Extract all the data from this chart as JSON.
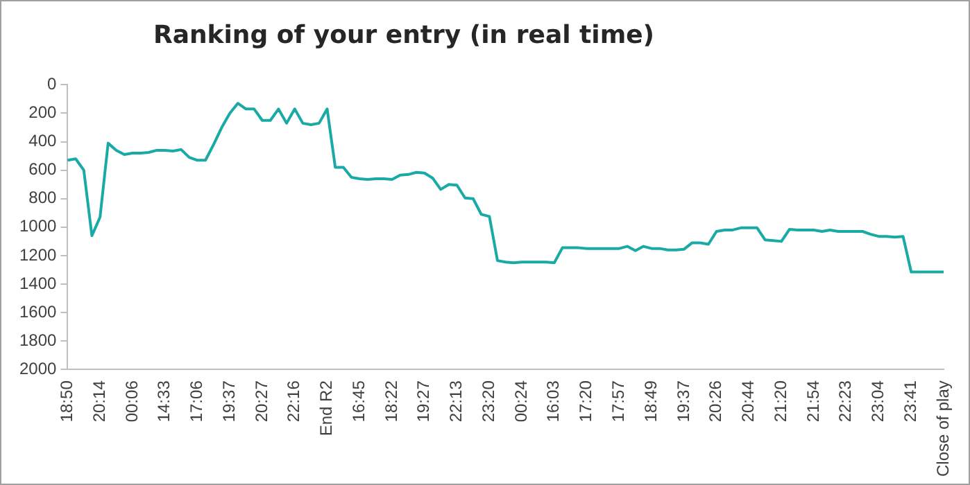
{
  "chart_data": {
    "type": "line",
    "title": "Ranking of your entry (in real time)",
    "categories": [
      "18:50",
      null,
      null,
      null,
      "20:14",
      null,
      null,
      null,
      "00:06",
      null,
      null,
      null,
      "14:33",
      null,
      null,
      null,
      "17:06",
      null,
      null,
      null,
      "19:37",
      null,
      null,
      null,
      "20:27",
      null,
      null,
      null,
      "22:16",
      null,
      null,
      null,
      "End R2",
      null,
      null,
      null,
      "16:45",
      null,
      null,
      null,
      "18:22",
      null,
      null,
      null,
      "19:27",
      null,
      null,
      null,
      "22:13",
      null,
      null,
      null,
      "23:20",
      null,
      null,
      null,
      "00:24",
      null,
      null,
      null,
      "16:03",
      null,
      null,
      null,
      "17:20",
      null,
      null,
      null,
      "17:57",
      null,
      null,
      null,
      "18:49",
      null,
      null,
      null,
      "19:37",
      null,
      null,
      null,
      "20:26",
      null,
      null,
      null,
      "20:44",
      null,
      null,
      null,
      "21:20",
      null,
      null,
      null,
      "21:54",
      null,
      null,
      null,
      "22:23",
      null,
      null,
      null,
      "23:04",
      null,
      null,
      null,
      "23:41",
      null,
      null,
      null,
      "Close of play"
    ],
    "series": [
      {
        "color": "#1aaaa6",
        "values": [
          530,
          520,
          600,
          1060,
          930,
          410,
          460,
          490,
          480,
          480,
          475,
          460,
          460,
          465,
          455,
          510,
          530,
          530,
          420,
          300,
          200,
          130,
          170,
          170,
          250,
          250,
          170,
          270,
          170,
          270,
          280,
          270,
          170,
          580,
          580,
          650,
          660,
          665,
          660,
          660,
          665,
          635,
          630,
          615,
          620,
          655,
          735,
          700,
          705,
          795,
          800,
          910,
          925,
          1235,
          1245,
          1250,
          1245,
          1245,
          1245,
          1245,
          1250,
          1145,
          1145,
          1145,
          1150,
          1150,
          1150,
          1150,
          1150,
          1135,
          1165,
          1135,
          1150,
          1150,
          1160,
          1160,
          1155,
          1110,
          1110,
          1120,
          1030,
          1020,
          1020,
          1005,
          1005,
          1005,
          1090,
          1095,
          1100,
          1015,
          1020,
          1020,
          1020,
          1030,
          1020,
          1030,
          1030,
          1030,
          1030,
          1050,
          1065,
          1065,
          1070,
          1065,
          1315,
          1315,
          1315,
          1315,
          1315
        ]
      }
    ],
    "ylim": [
      2000,
      0
    ],
    "yticks": [
      0,
      200,
      400,
      600,
      800,
      1000,
      1200,
      1400,
      1600,
      1800,
      2000
    ],
    "grid": false,
    "legend": false,
    "marker": "none",
    "line_style": "solid"
  }
}
